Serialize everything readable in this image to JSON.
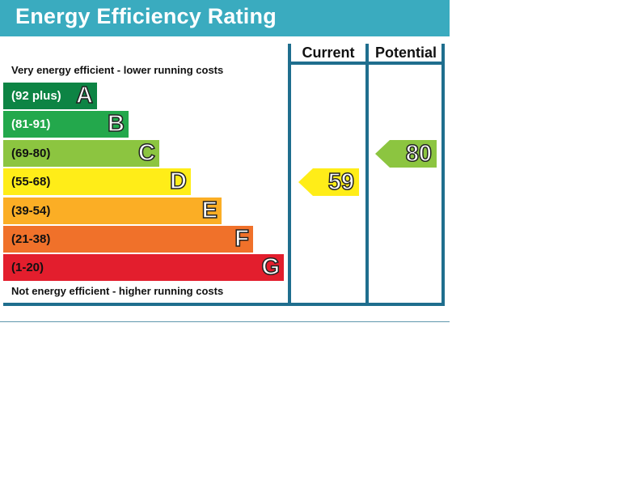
{
  "chart_data": {
    "type": "bar",
    "title": "Energy Efficiency Rating",
    "column_headers": [
      "Current",
      "Potential"
    ],
    "top_caption": "Very energy efficient - lower running costs",
    "bottom_caption": "Not energy efficient - higher running costs",
    "bands": [
      {
        "letter": "A",
        "range": "(92 plus)",
        "min": 92,
        "max": 100,
        "color": "#0d8444",
        "text_color": "#ffffff"
      },
      {
        "letter": "B",
        "range": "(81-91)",
        "min": 81,
        "max": 91,
        "color": "#23a84c",
        "text_color": "#ffffff"
      },
      {
        "letter": "C",
        "range": "(69-80)",
        "min": 69,
        "max": 80,
        "color": "#8cc540",
        "text_color": "#111111"
      },
      {
        "letter": "D",
        "range": "(55-68)",
        "min": 55,
        "max": 68,
        "color": "#ffed18",
        "text_color": "#111111"
      },
      {
        "letter": "E",
        "range": "(39-54)",
        "min": 39,
        "max": 54,
        "color": "#fbae25",
        "text_color": "#111111"
      },
      {
        "letter": "F",
        "range": "(21-38)",
        "min": 21,
        "max": 38,
        "color": "#f0712a",
        "text_color": "#111111"
      },
      {
        "letter": "G",
        "range": "(1-20)",
        "min": 1,
        "max": 20,
        "color": "#e31e2d",
        "text_color": "#111111"
      }
    ],
    "current": {
      "value": 59,
      "band": "D",
      "color": "#ffed18"
    },
    "potential": {
      "value": 80,
      "band": "C",
      "color": "#8cc540"
    },
    "frame_color": "#1f6e8e",
    "title_bar_color": "#3aabbf"
  }
}
